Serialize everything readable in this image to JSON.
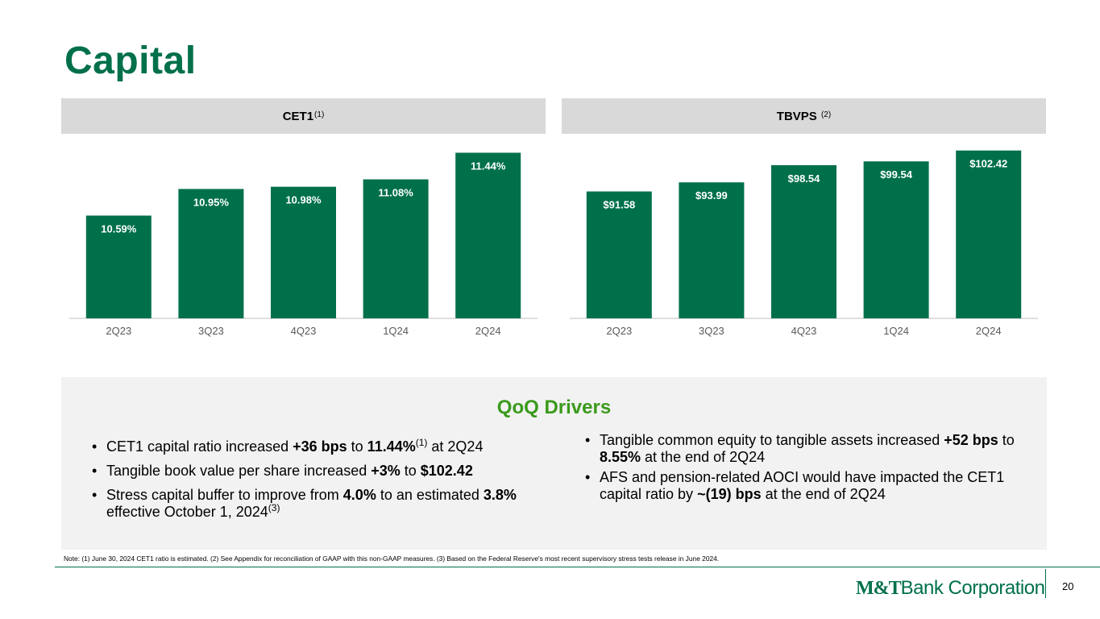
{
  "title": "Capital",
  "left_panel": {
    "header": "CET1",
    "header_note": "(1)"
  },
  "right_panel": {
    "header": "TBVPS",
    "header_note": "(2)"
  },
  "chart_data": [
    {
      "type": "bar",
      "title": "CET1(1)",
      "categories": [
        "2Q23",
        "3Q23",
        "4Q23",
        "1Q24",
        "2Q24"
      ],
      "values": [
        10.59,
        10.95,
        10.98,
        11.08,
        11.44
      ],
      "labels": [
        "10.59%",
        "10.95%",
        "10.98%",
        "11.08%",
        "11.44%"
      ],
      "ylim": [
        9.2,
        11.5
      ],
      "color": "#00704a"
    },
    {
      "type": "bar",
      "title": "TBVPS(2)",
      "categories": [
        "2Q23",
        "3Q23",
        "4Q23",
        "1Q24",
        "2Q24"
      ],
      "values": [
        91.58,
        93.99,
        98.54,
        99.54,
        102.42
      ],
      "labels": [
        "$91.58",
        "$93.99",
        "$98.54",
        "$99.54",
        "$102.42"
      ],
      "ylim": [
        58,
        103
      ],
      "color": "#00704a"
    }
  ],
  "drivers": {
    "title": "QoQ Drivers",
    "left": {
      "b1": {
        "pre": "CET1 capital ratio increased ",
        "b": "+36 bps",
        "mid": " to ",
        "b2": "11.44%",
        "sup": "(1)",
        "post": " at 2Q24"
      },
      "b2": {
        "pre": "Tangible book value per share increased ",
        "b": "+3%",
        "mid": " to ",
        "b2": "$102.42"
      },
      "b3": {
        "pre": "Stress capital buffer to improve from ",
        "b": "4.0%",
        "mid": " to an estimated ",
        "b2": "3.8%",
        "post": " effective October 1, 2024",
        "sup": "(3)"
      }
    },
    "right": {
      "b1": {
        "pre": "Tangible common equity to tangible assets increased ",
        "b": "+52 bps",
        "mid": " to ",
        "b2": "8.55%",
        "post": " at the end of 2Q24"
      },
      "b2": {
        "pre": "AFS and pension-related AOCI would have impacted the CET1 capital ratio by ",
        "b": "~(19) bps",
        "post": " at the end of 2Q24"
      }
    }
  },
  "note": "Note: (1) June 30, 2024 CET1 ratio is estimated. (2) See Appendix for reconciliation of GAAP with this non-GAAP measures. (3) Based on the Federal Reserve's most recent supervisory stress tests release in June 2024.",
  "logo": {
    "mt": "M&T",
    "rest": "Bank Corporation"
  },
  "page_number": "20",
  "colors": {
    "brand_green": "#00704a",
    "drivers_green": "#3a9a1a",
    "header_gray": "#d9d9d9",
    "panel_gray": "#f2f2f2"
  }
}
